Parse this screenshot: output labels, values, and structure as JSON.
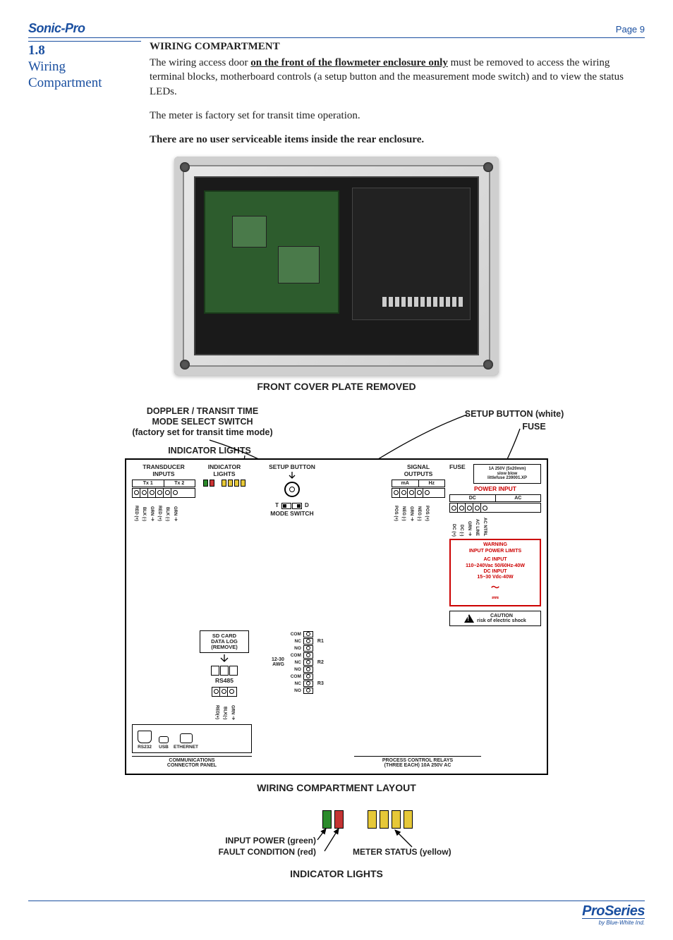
{
  "header": {
    "brand": "Sonic-Pro",
    "pageLabel": "Page 9"
  },
  "section": {
    "number": "1.8",
    "title_l1": "Wiring",
    "title_l2": "Compartment"
  },
  "body": {
    "heading": "WIRING COMPARTMENT",
    "p1a": "The wiring access door ",
    "p1b": "on the front of the flowmeter enclosure only",
    "p1c": " must be removed to access the wiring terminal blocks, motherboard controls (a setup button and the measurement mode switch) and to view the status LEDs.",
    "p2": "The meter is factory set for transit time operation.",
    "p3": "There are no user serviceable items inside the rear enclosure."
  },
  "photo": {
    "caption": "FRONT COVER PLATE REMOVED"
  },
  "callouts": {
    "doppler_l1": "DOPPLER / TRANSIT TIME",
    "doppler_l2": "MODE SELECT SWITCH",
    "doppler_l3": "(factory set for transit time mode)",
    "indicator": "INDICATOR LIGHTS",
    "setup": "SETUP BUTTON (white)",
    "fuse": "FUSE"
  },
  "wiring": {
    "topLabels": {
      "transducer": "TRANSDUCER\nINPUTS",
      "tx1": "Tx 1",
      "tx2": "Tx 2",
      "indicator": "INDICATOR\nLIGHTS",
      "setup": "SETUP BUTTON",
      "modeSwitch": "MODE SWITCH",
      "t": "T",
      "d": "D",
      "fuse": "FUSE",
      "fuseSpec": "1A 250V (5x20mm)\nslow blow\nlittlefuse 239001.XP",
      "signal": "SIGNAL\nOUTPUTS",
      "ma": "mA",
      "hz": "Hz",
      "power": "POWER INPUT",
      "dc": "DC",
      "ac": "AC"
    },
    "txPins": [
      "RED (+)",
      "BLK (-)",
      "GRN ⏚",
      "RED (+)",
      "BLK (-)",
      "GRN ⏚"
    ],
    "sigPins": [
      "POS (+)",
      "NEG (-)",
      "GRN ⏚",
      "NEG (-)",
      "POS (+)"
    ],
    "pwrPins": [
      "DC (+)",
      "DC (-)",
      "GRN ⏚",
      "AC LINE",
      "AC NTRL"
    ],
    "sdcard": "SD CARD\nDATA LOG\n(REMOVE)",
    "rs485": "RS485",
    "rs485pins": [
      "RED(+)",
      "BLK(-)",
      "GRN ⏚"
    ],
    "rs232": "RS232",
    "usb": "USB",
    "eth": "ETHERNET",
    "commPanel": "COMMUNICATIONS\nCONNECTOR PANEL",
    "relaySide": "12-30\nAWG",
    "relayPins": [
      "COM",
      "NC",
      "NO"
    ],
    "r1": "R1",
    "r2": "R2",
    "r3": "R3",
    "relayLabel": "PROCESS CONTROL RELAYS\n(THREE EACH) 10A 250V AC",
    "warn_t": "WARNING",
    "warn_b": "INPUT POWER LIMITS",
    "warn_ac1": "AC INPUT",
    "warn_ac2": "110~240Vac 50/60Hz-40W",
    "warn_dc1": "DC INPUT",
    "warn_dc2": "15~30 Vdc-40W",
    "caution1": "CAUTION",
    "caution2": "risk of electric shock",
    "layoutCaption": "WIRING COMPARTMENT LAYOUT"
  },
  "indicator": {
    "inputPower": "INPUT POWER (green)",
    "fault": "FAULT CONDITION (red)",
    "meter": "METER STATUS (yellow)",
    "title": "INDICATOR LIGHTS",
    "colors": {
      "green": "#2b8a2b",
      "red": "#c33333",
      "yellow": "#e6c838"
    }
  },
  "footer": {
    "logo": "ProSeries",
    "sub": "by Blue-White Ind."
  }
}
